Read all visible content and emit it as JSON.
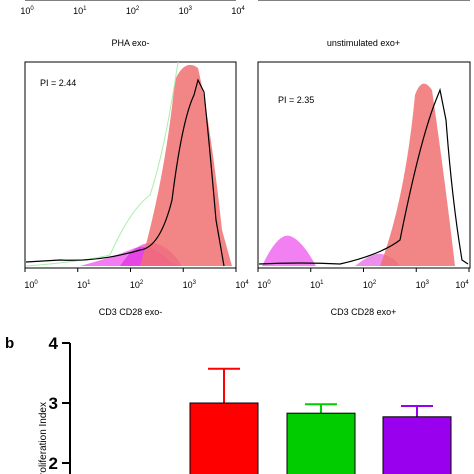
{
  "top_axis_ticks": [
    {
      "base": "10",
      "exponent": "0"
    },
    {
      "base": "10",
      "exponent": "1"
    },
    {
      "base": "10",
      "exponent": "2"
    },
    {
      "base": "10",
      "exponent": "3"
    },
    {
      "base": "10",
      "exponent": "4"
    }
  ],
  "panels": [
    {
      "title": "PHA exo-",
      "pi": "PI = 2.44",
      "xlabel": "CD3 CD28 exo-"
    },
    {
      "title": "unstimulated exo+",
      "pi": "PI = 2.35",
      "xlabel": "CD3 CD28 exo+"
    }
  ],
  "x_ticks": [
    {
      "base": "10",
      "exponent": "0"
    },
    {
      "base": "10",
      "exponent": "1"
    },
    {
      "base": "10",
      "exponent": "2"
    },
    {
      "base": "10",
      "exponent": "3"
    },
    {
      "base": "10",
      "exponent": "4"
    }
  ],
  "panel_label": "b",
  "chart_data": {
    "type": "bar",
    "ylabel": "Proliferation Index",
    "categories": [
      null,
      null,
      null
    ],
    "values": [
      3.0,
      2.83,
      2.77
    ],
    "errors": [
      0.57,
      0.15,
      0.18
    ],
    "colors": [
      "#ff0000",
      "#00cc00",
      "#9900ee"
    ],
    "ylim": [
      2,
      4
    ],
    "yticks": [
      2,
      3,
      4
    ]
  }
}
